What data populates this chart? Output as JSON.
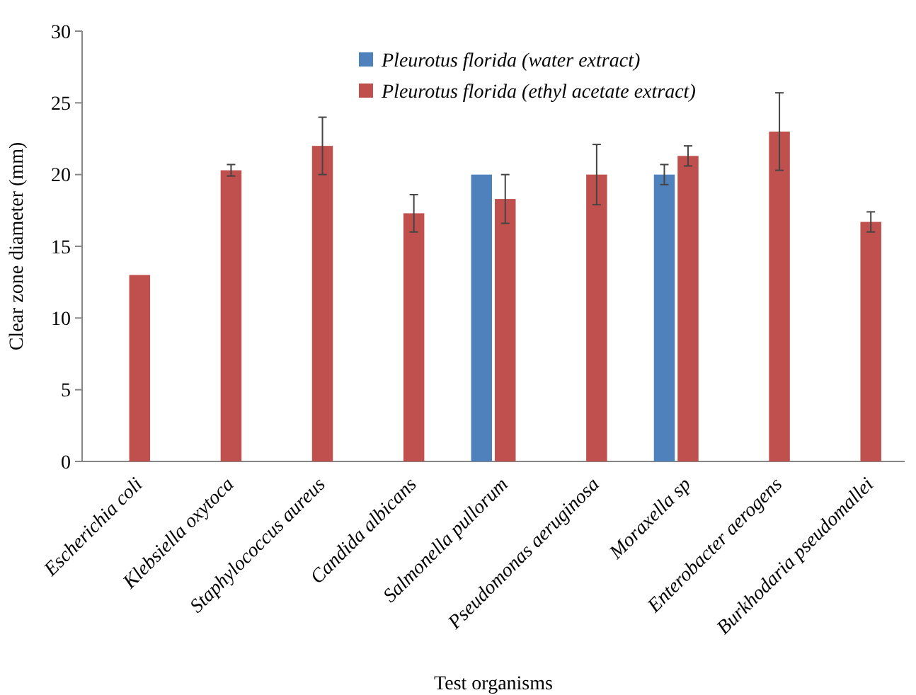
{
  "chart_data": {
    "type": "bar",
    "xlabel": "Test organisms",
    "ylabel": "Clear zone diameter (mm)",
    "categories": [
      "Escherichia coli",
      "Klebsiella oxytoca",
      "Staphylococcus aureus",
      "Candida albicans",
      "Salmonella pullorum",
      "Pseudomonas aeruginosa",
      "Moraxella sp",
      "Enterobacter aerogens",
      "Burkhodaria pseudomallei"
    ],
    "series": [
      {
        "name": "Pleurotus florida (water extract)",
        "color": "#4f81bd",
        "values": [
          null,
          null,
          null,
          null,
          20,
          null,
          20,
          null,
          null
        ],
        "errors": [
          null,
          null,
          null,
          null,
          null,
          null,
          0.7,
          null,
          null
        ]
      },
      {
        "name": "Pleurotus florida (ethyl acetate extract)",
        "color": "#c0504d",
        "values": [
          13,
          20.3,
          22,
          17.3,
          18.3,
          20,
          21.3,
          23,
          16.7
        ],
        "errors": [
          null,
          0.4,
          2,
          1.3,
          1.7,
          2.1,
          0.7,
          2.7,
          0.7
        ]
      }
    ],
    "ylim": [
      0,
      30
    ],
    "yticks": [
      0,
      5,
      10,
      15,
      20,
      25,
      30
    ],
    "grid": false,
    "legend": "top"
  }
}
